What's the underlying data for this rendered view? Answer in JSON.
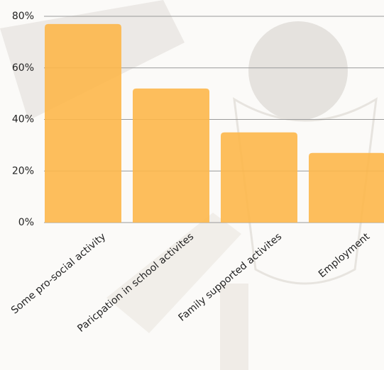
{
  "chart_data": {
    "type": "bar",
    "categories": [
      "Some pro-social activity",
      "Paricpation in school activites",
      "Family supported activites",
      "Employment"
    ],
    "values": [
      77,
      52,
      35,
      27
    ],
    "color": "#fdb74a",
    "ylim": [
      0,
      80
    ],
    "yticks": [
      {
        "value": 0,
        "label": "0%"
      },
      {
        "value": 20,
        "label": "20%"
      },
      {
        "value": 40,
        "label": "40%"
      },
      {
        "value": 60,
        "label": "60%"
      },
      {
        "value": 80,
        "label": "80%"
      }
    ],
    "grid": true
  }
}
